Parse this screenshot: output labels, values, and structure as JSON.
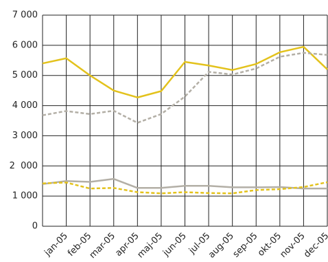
{
  "chart_data": {
    "type": "line",
    "categories": [
      null,
      "jan-05",
      "feb-05",
      "mar-05",
      "apr-05",
      "maj-05",
      "jun-05",
      "jul-05",
      "aug-05",
      "sep-05",
      "okt-05",
      "nov-05",
      "dec-05"
    ],
    "series": [
      {
        "color": "#e3c21c",
        "dashed": false,
        "values": [
          5400,
          5570,
          5000,
          4500,
          4270,
          4480,
          5450,
          5330,
          5180,
          5380,
          5770,
          5950,
          5200
        ]
      },
      {
        "color": "#b3afa6",
        "dashed": true,
        "values": [
          3680,
          3820,
          3720,
          3830,
          3430,
          3720,
          4300,
          5120,
          5030,
          5230,
          5620,
          5750,
          5680
        ]
      },
      {
        "color": "#b3afa6",
        "dashed": false,
        "values": [
          1400,
          1500,
          1470,
          1570,
          1270,
          1270,
          1340,
          1340,
          1290,
          1290,
          1300,
          1250,
          1250
        ]
      },
      {
        "color": "#e3c21c",
        "dashed": true,
        "values": [
          1420,
          1450,
          1250,
          1270,
          1130,
          1090,
          1130,
          1100,
          1090,
          1200,
          1230,
          1300,
          1460
        ]
      }
    ],
    "ylim": [
      0,
      7000
    ],
    "yticks": [
      0,
      {
        "value": 1000,
        "label": "1 000"
      },
      {
        "value": 2000,
        "label": "2  000"
      },
      {
        "value": 3000,
        "label": "3 000"
      },
      {
        "value": 4000,
        "label": "4 000"
      },
      {
        "value": 5000,
        "label": "5 000"
      },
      {
        "value": 6000,
        "label": "6 000"
      },
      {
        "value": 7000,
        "label": "7 000"
      }
    ],
    "grid": true
  }
}
